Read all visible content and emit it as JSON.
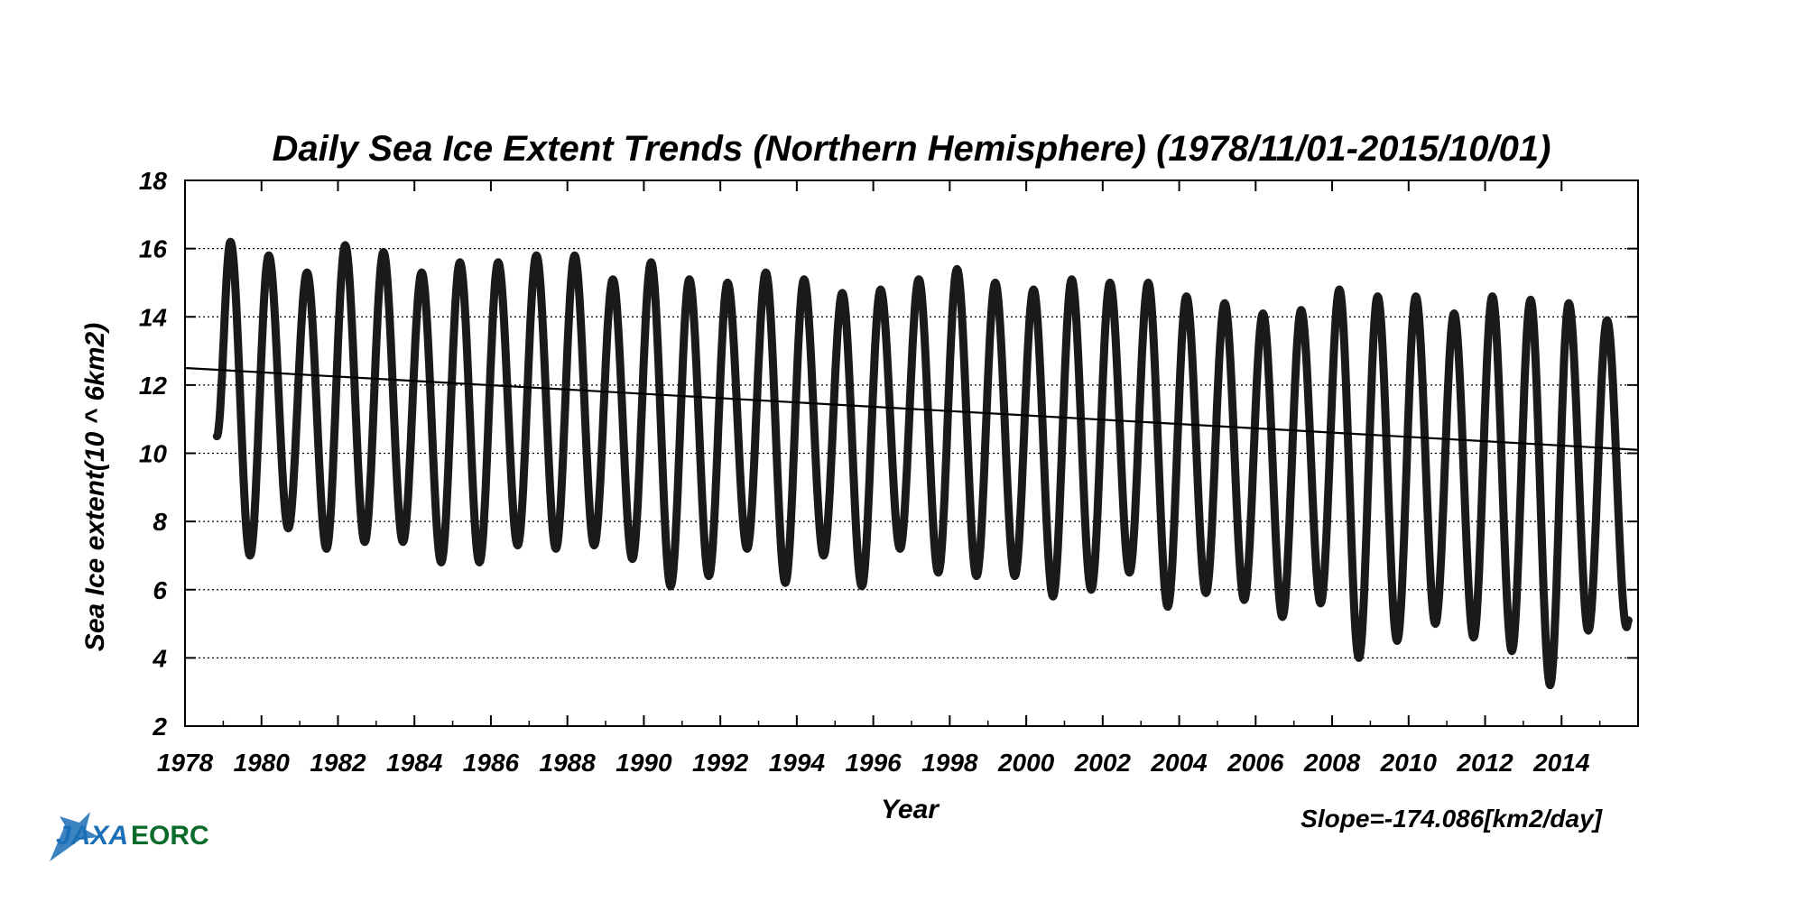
{
  "chart_data": {
    "type": "scatter",
    "title": "Daily Sea Ice Extent Trends (Northern Hemisphere) (1978/11/01-2015/10/01)",
    "xlabel": "Year",
    "ylabel": "Sea Ice extent(10 ^ 6km2)",
    "xlim": [
      1978,
      2016
    ],
    "ylim": [
      2,
      18
    ],
    "x_ticks": [
      "1978",
      "1980",
      "1982",
      "1984",
      "1986",
      "1988",
      "1990",
      "1992",
      "1994",
      "1996",
      "1998",
      "2000",
      "2002",
      "2004",
      "2006",
      "2008",
      "2010",
      "2012",
      "2014"
    ],
    "y_ticks": [
      "2",
      "4",
      "6",
      "8",
      "10",
      "12",
      "14",
      "16",
      "18"
    ],
    "grid": "horizontal dotted",
    "annotation": "Slope=-174.086[km2/day]",
    "logo": "JAXA EORC",
    "series": [
      {
        "kind": "daily extent (seasonal cycle)",
        "start": "1978-11-01",
        "end": "2015-10-01",
        "annual_max": [
          {
            "year": 1979,
            "value": 16.2
          },
          {
            "year": 1980,
            "value": 15.8
          },
          {
            "year": 1981,
            "value": 15.3
          },
          {
            "year": 1982,
            "value": 16.1
          },
          {
            "year": 1983,
            "value": 15.9
          },
          {
            "year": 1984,
            "value": 15.3
          },
          {
            "year": 1985,
            "value": 15.6
          },
          {
            "year": 1986,
            "value": 15.6
          },
          {
            "year": 1987,
            "value": 15.8
          },
          {
            "year": 1988,
            "value": 15.8
          },
          {
            "year": 1989,
            "value": 15.1
          },
          {
            "year": 1990,
            "value": 15.6
          },
          {
            "year": 1991,
            "value": 15.1
          },
          {
            "year": 1992,
            "value": 15.0
          },
          {
            "year": 1993,
            "value": 15.3
          },
          {
            "year": 1994,
            "value": 15.1
          },
          {
            "year": 1995,
            "value": 14.7
          },
          {
            "year": 1996,
            "value": 14.8
          },
          {
            "year": 1997,
            "value": 15.1
          },
          {
            "year": 1998,
            "value": 15.4
          },
          {
            "year": 1999,
            "value": 15.0
          },
          {
            "year": 2000,
            "value": 14.8
          },
          {
            "year": 2001,
            "value": 15.1
          },
          {
            "year": 2002,
            "value": 15.0
          },
          {
            "year": 2003,
            "value": 15.0
          },
          {
            "year": 2004,
            "value": 14.6
          },
          {
            "year": 2005,
            "value": 14.4
          },
          {
            "year": 2006,
            "value": 14.1
          },
          {
            "year": 2007,
            "value": 14.2
          },
          {
            "year": 2008,
            "value": 14.8
          },
          {
            "year": 2009,
            "value": 14.6
          },
          {
            "year": 2010,
            "value": 14.6
          },
          {
            "year": 2011,
            "value": 14.1
          },
          {
            "year": 2012,
            "value": 14.6
          },
          {
            "year": 2013,
            "value": 14.5
          },
          {
            "year": 2014,
            "value": 14.4
          },
          {
            "year": 2015,
            "value": 13.9
          }
        ],
        "annual_min": [
          {
            "year": 1979,
            "value": 7.0
          },
          {
            "year": 1980,
            "value": 7.8
          },
          {
            "year": 1981,
            "value": 7.2
          },
          {
            "year": 1982,
            "value": 7.4
          },
          {
            "year": 1983,
            "value": 7.4
          },
          {
            "year": 1984,
            "value": 6.8
          },
          {
            "year": 1985,
            "value": 6.8
          },
          {
            "year": 1986,
            "value": 7.3
          },
          {
            "year": 1987,
            "value": 7.2
          },
          {
            "year": 1988,
            "value": 7.3
          },
          {
            "year": 1989,
            "value": 6.9
          },
          {
            "year": 1990,
            "value": 6.1
          },
          {
            "year": 1991,
            "value": 6.4
          },
          {
            "year": 1992,
            "value": 7.2
          },
          {
            "year": 1993,
            "value": 6.2
          },
          {
            "year": 1994,
            "value": 7.0
          },
          {
            "year": 1995,
            "value": 6.1
          },
          {
            "year": 1996,
            "value": 7.2
          },
          {
            "year": 1997,
            "value": 6.5
          },
          {
            "year": 1998,
            "value": 6.4
          },
          {
            "year": 1999,
            "value": 6.4
          },
          {
            "year": 2000,
            "value": 5.8
          },
          {
            "year": 2001,
            "value": 6.0
          },
          {
            "year": 2002,
            "value": 6.5
          },
          {
            "year": 2003,
            "value": 5.5
          },
          {
            "year": 2004,
            "value": 5.9
          },
          {
            "year": 2005,
            "value": 5.7
          },
          {
            "year": 2006,
            "value": 5.2
          },
          {
            "year": 2007,
            "value": 5.6
          },
          {
            "year": 2008,
            "value": 4.0
          },
          {
            "year": 2009,
            "value": 4.5
          },
          {
            "year": 2010,
            "value": 5.0
          },
          {
            "year": 2011,
            "value": 4.6
          },
          {
            "year": 2012,
            "value": 4.2
          },
          {
            "year": 2013,
            "value": 3.2
          },
          {
            "year": 2014,
            "value": 4.8
          },
          {
            "year": 2015,
            "value": 4.9
          }
        ]
      },
      {
        "kind": "linear trend",
        "points": [
          {
            "x": 1978.0,
            "y": 12.5
          },
          {
            "x": 2016.0,
            "y": 10.1
          }
        ]
      }
    ]
  }
}
